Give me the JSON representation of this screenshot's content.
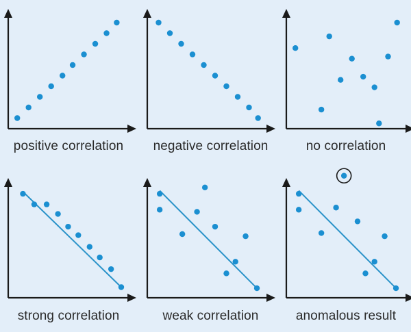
{
  "colors": {
    "background": "#e3eef9",
    "axis": "#1a1a1a",
    "point": "#1b8fd1",
    "trend_line": "#2b93c9",
    "highlight_circle": "#1a1a1a"
  },
  "chart_data": [
    {
      "type": "scatter",
      "caption": "positive correlation",
      "points": [
        [
          0.08,
          0.1
        ],
        [
          0.18,
          0.2
        ],
        [
          0.28,
          0.3
        ],
        [
          0.38,
          0.4
        ],
        [
          0.48,
          0.5
        ],
        [
          0.57,
          0.6
        ],
        [
          0.67,
          0.7
        ],
        [
          0.77,
          0.8
        ],
        [
          0.87,
          0.9
        ],
        [
          0.96,
          1.0
        ]
      ],
      "trend_line": null,
      "highlight": null
    },
    {
      "type": "scatter",
      "caption": "negative correlation",
      "points": [
        [
          0.1,
          1.0
        ],
        [
          0.2,
          0.9
        ],
        [
          0.3,
          0.8
        ],
        [
          0.4,
          0.7
        ],
        [
          0.5,
          0.6
        ],
        [
          0.6,
          0.5
        ],
        [
          0.7,
          0.4
        ],
        [
          0.8,
          0.3
        ],
        [
          0.9,
          0.2
        ],
        [
          0.98,
          0.1
        ]
      ],
      "trend_line": null,
      "highlight": null
    },
    {
      "type": "scatter",
      "caption": "no correlation",
      "points": [
        [
          0.08,
          0.76
        ],
        [
          0.31,
          0.18
        ],
        [
          0.38,
          0.87
        ],
        [
          0.48,
          0.46
        ],
        [
          0.58,
          0.66
        ],
        [
          0.68,
          0.49
        ],
        [
          0.78,
          0.39
        ],
        [
          0.82,
          0.05
        ],
        [
          0.9,
          0.68
        ],
        [
          0.98,
          1.0
        ]
      ],
      "trend_line": null,
      "highlight": null
    },
    {
      "type": "scatter",
      "caption": "strong correlation",
      "points": [
        [
          0.13,
          0.98
        ],
        [
          0.23,
          0.88
        ],
        [
          0.34,
          0.88
        ],
        [
          0.44,
          0.79
        ],
        [
          0.53,
          0.67
        ],
        [
          0.62,
          0.59
        ],
        [
          0.72,
          0.48
        ],
        [
          0.81,
          0.38
        ],
        [
          0.91,
          0.27
        ],
        [
          1.0,
          0.1
        ]
      ],
      "trend_line": [
        [
          0.13,
          1.0
        ],
        [
          1.0,
          0.1
        ]
      ],
      "highlight": null
    },
    {
      "type": "scatter",
      "caption": "weak correlation",
      "points": [
        [
          0.11,
          0.98
        ],
        [
          0.11,
          0.83
        ],
        [
          0.31,
          0.6
        ],
        [
          0.44,
          0.81
        ],
        [
          0.51,
          1.04
        ],
        [
          0.6,
          0.67
        ],
        [
          0.7,
          0.23
        ],
        [
          0.78,
          0.34
        ],
        [
          0.87,
          0.58
        ],
        [
          0.97,
          0.09
        ]
      ],
      "trend_line": [
        [
          0.11,
          1.01
        ],
        [
          0.97,
          0.09
        ]
      ],
      "highlight": null
    },
    {
      "type": "scatter",
      "caption": "anomalous result",
      "points": [
        [
          0.11,
          0.98
        ],
        [
          0.11,
          0.83
        ],
        [
          0.31,
          0.61
        ],
        [
          0.44,
          0.85
        ],
        [
          0.51,
          1.15
        ],
        [
          0.63,
          0.72
        ],
        [
          0.7,
          0.23
        ],
        [
          0.78,
          0.34
        ],
        [
          0.87,
          0.58
        ],
        [
          0.97,
          0.09
        ]
      ],
      "trend_line": [
        [
          0.11,
          1.01
        ],
        [
          0.97,
          0.09
        ]
      ],
      "highlight": 4
    }
  ]
}
